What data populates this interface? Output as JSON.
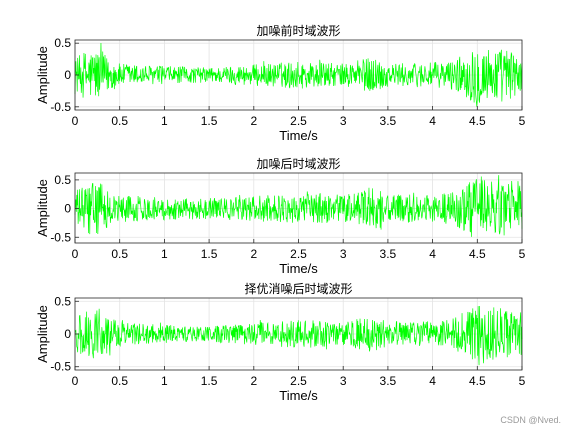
{
  "watermark": "CSDN @Nved.",
  "colors": {
    "signal": "#00ff00",
    "axis": "#262626",
    "grid": "#e3e3e3",
    "text": "#000000"
  },
  "chart_data": [
    {
      "type": "line",
      "title": "加噪前时域波形",
      "xlabel": "Time/s",
      "ylabel": "Amplitude",
      "xlim": [
        0,
        5
      ],
      "ylim": [
        -0.55,
        0.55
      ],
      "xticks": [
        "0",
        "0.5",
        "1",
        "1.5",
        "2",
        "2.5",
        "3",
        "3.5",
        "4",
        "4.5",
        "5"
      ],
      "yticks": [
        "0.5",
        "0",
        "-0.5"
      ],
      "ytick_values": [
        0.5,
        0,
        -0.5
      ],
      "grid": true,
      "series": [
        {
          "points": 1000,
          "x_range": [
            0,
            5
          ],
          "envelope_t": [
            0,
            0.1,
            0.2,
            0.3,
            0.35,
            0.5,
            1.0,
            1.5,
            2.0,
            2.5,
            3.0,
            3.35,
            3.5,
            4.0,
            4.2,
            4.4,
            4.5,
            4.6,
            4.8,
            5.0
          ],
          "envelope_amp": [
            0.25,
            0.38,
            0.42,
            0.4,
            0.3,
            0.18,
            0.14,
            0.12,
            0.17,
            0.22,
            0.18,
            0.3,
            0.18,
            0.2,
            0.22,
            0.38,
            0.52,
            0.45,
            0.42,
            0.35
          ]
        }
      ]
    },
    {
      "type": "line",
      "title": "加噪后时域波形",
      "xlabel": "Time/s",
      "ylabel": "Amplitude",
      "xlim": [
        0,
        5
      ],
      "ylim": [
        -0.6,
        0.62
      ],
      "xticks": [
        "0",
        "0.5",
        "1",
        "1.5",
        "2",
        "2.5",
        "3",
        "3.5",
        "4",
        "4.5",
        "5"
      ],
      "yticks": [
        "0.5",
        "0",
        "-0.5"
      ],
      "ytick_values": [
        0.5,
        0,
        -0.5
      ],
      "grid": true,
      "series": [
        {
          "points": 1000,
          "x_range": [
            0,
            5
          ],
          "envelope_t": [
            0,
            0.1,
            0.2,
            0.3,
            0.35,
            0.5,
            1.0,
            1.5,
            2.0,
            2.5,
            3.0,
            3.35,
            3.5,
            4.0,
            4.2,
            4.4,
            4.5,
            4.6,
            4.8,
            5.0
          ],
          "envelope_amp": [
            0.3,
            0.42,
            0.46,
            0.44,
            0.35,
            0.24,
            0.2,
            0.18,
            0.22,
            0.27,
            0.24,
            0.36,
            0.24,
            0.26,
            0.28,
            0.44,
            0.6,
            0.52,
            0.48,
            0.42
          ]
        }
      ]
    },
    {
      "type": "line",
      "title": "择优消噪后时域波形",
      "xlabel": "Time/s",
      "ylabel": "Amplitude",
      "xlim": [
        0,
        5
      ],
      "ylim": [
        -0.55,
        0.55
      ],
      "xticks": [
        "0",
        "0.5",
        "1",
        "1.5",
        "2",
        "2.5",
        "3",
        "3.5",
        "4",
        "4.5",
        "5"
      ],
      "yticks": [
        "0.5",
        "0",
        "-0.5"
      ],
      "ytick_values": [
        0.5,
        0,
        -0.5
      ],
      "grid": true,
      "series": [
        {
          "points": 1000,
          "x_range": [
            0,
            5
          ],
          "envelope_t": [
            0,
            0.1,
            0.2,
            0.3,
            0.35,
            0.5,
            1.0,
            1.5,
            2.0,
            2.5,
            3.0,
            3.35,
            3.5,
            4.0,
            4.2,
            4.4,
            4.5,
            4.6,
            4.8,
            5.0
          ],
          "envelope_amp": [
            0.25,
            0.36,
            0.4,
            0.38,
            0.3,
            0.18,
            0.14,
            0.12,
            0.17,
            0.22,
            0.18,
            0.3,
            0.18,
            0.2,
            0.22,
            0.38,
            0.52,
            0.45,
            0.42,
            0.35
          ]
        }
      ]
    }
  ]
}
